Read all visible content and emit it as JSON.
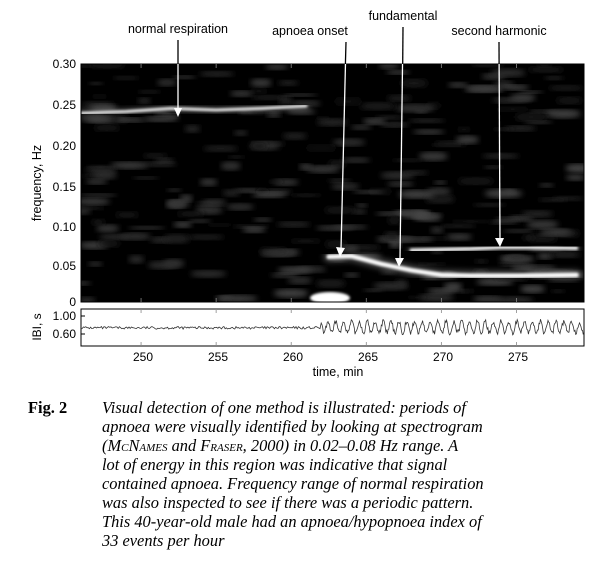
{
  "figure": {
    "annotations": [
      {
        "text": "normal respiration"
      },
      {
        "text": "apnoea onset"
      },
      {
        "text": "fundamental"
      },
      {
        "text": "second harmonic"
      }
    ],
    "spectrogram": {
      "ylabel": "frequency, Hz",
      "yticks": [
        "0.30",
        "0.25",
        "0.20",
        "0.15",
        "0.10",
        "0.05",
        "0"
      ],
      "ylim": [
        0,
        0.3
      ]
    },
    "ibi": {
      "ylabel": "IBI, s",
      "yticks": [
        "1.00",
        "0.60"
      ],
      "ylim": [
        0.55,
        1.1
      ]
    },
    "xaxis": {
      "label": "time, min",
      "ticks": [
        "250",
        "255",
        "260",
        "265",
        "270",
        "275"
      ],
      "xlim": [
        246,
        279.5
      ]
    },
    "colors": {
      "background": "#000000",
      "energy": "#ffffff"
    }
  },
  "chart_data": {
    "type": "heatmap",
    "ylabel": "frequency, Hz",
    "xlabel": "time, min",
    "xlim": [
      246,
      279.5
    ],
    "ylim": [
      0,
      0.3
    ],
    "ridges": [
      {
        "points": [
          [
            246,
            0.238
          ],
          [
            249,
            0.24
          ],
          [
            252,
            0.244
          ],
          [
            255,
            0.242
          ],
          [
            258,
            0.244
          ],
          [
            261,
            0.247
          ]
        ]
      },
      {
        "points": [
          [
            262.5,
            0.057
          ],
          [
            264,
            0.058
          ],
          [
            266,
            0.048
          ],
          [
            268,
            0.04
          ],
          [
            270,
            0.034
          ],
          [
            272,
            0.033
          ],
          [
            275,
            0.033
          ],
          [
            279,
            0.034
          ]
        ]
      },
      {
        "points": [
          [
            268,
            0.065
          ],
          [
            270,
            0.066
          ],
          [
            272,
            0.067
          ],
          [
            274,
            0.069
          ],
          [
            276,
            0.069
          ],
          [
            279,
            0.068
          ]
        ]
      }
    ],
    "ibi_series": {
      "segments": [
        {
          "x": [
            246,
            262
          ],
          "mean": 0.82,
          "amplitude": 0.02
        },
        {
          "x": [
            262,
            279.5
          ],
          "mean": 0.83,
          "amplitude": 0.12
        }
      ]
    }
  },
  "caption": {
    "label": "Fig. 2",
    "line1": "Visual detection of one method is illustrated: periods of",
    "line2": "apnoea were visually identified by looking at spectrogram",
    "line3_open": "(",
    "name1": "McNames",
    "line3_and": " and ",
    "name2": "Fraser",
    "line3_rest": ", 2000) in 0.02–0.08 Hz range. A",
    "line4": "lot of energy in this region was indicative that signal",
    "line5": "contained apnoea. Frequency range of normal respiration",
    "line6": "was also inspected to see if there was a periodic pattern.",
    "line7": "This 40-year-old male had an apnoea/hypopnoea index of",
    "line8": "33 events per hour"
  }
}
